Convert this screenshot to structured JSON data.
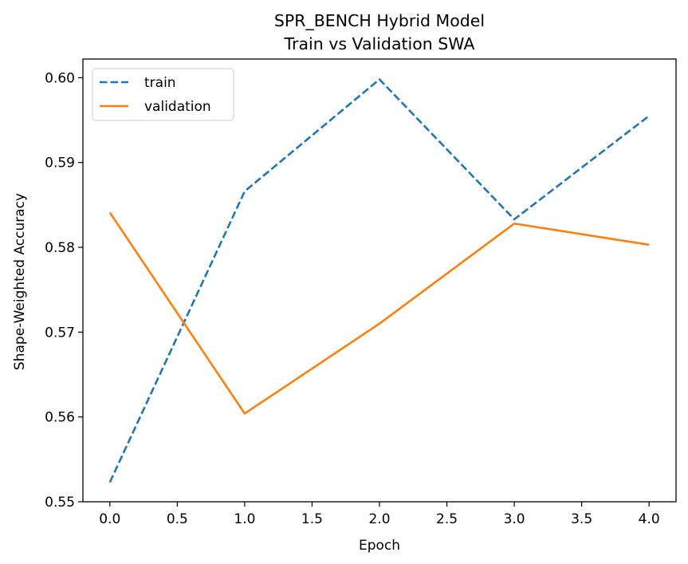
{
  "chart_data": {
    "type": "line",
    "title": "SPR_BENCH Hybrid Model",
    "subtitle": "Train vs Validation SWA",
    "xlabel": "Epoch",
    "ylabel": "Shape-Weighted Accuracy",
    "x": [
      0,
      1,
      2,
      3,
      4
    ],
    "xlim": [
      -0.2,
      4.2
    ],
    "ylim": [
      0.55,
      0.6022
    ],
    "xticks": [
      "0.0",
      "0.5",
      "1.0",
      "1.5",
      "2.0",
      "2.5",
      "3.0",
      "3.5",
      "4.0"
    ],
    "yticks": [
      "0.55",
      "0.56",
      "0.57",
      "0.58",
      "0.59",
      "0.60"
    ],
    "grid": false,
    "legend_position": "top-left",
    "series": [
      {
        "name": "train",
        "values": [
          0.5523,
          0.5866,
          0.5998,
          0.5833,
          0.5955
        ],
        "color": "#1f77b4",
        "style": "dashed"
      },
      {
        "name": "validation",
        "values": [
          0.5841,
          0.5604,
          0.571,
          0.5828,
          0.5803
        ],
        "color": "#ff7f0e",
        "style": "solid"
      }
    ]
  }
}
